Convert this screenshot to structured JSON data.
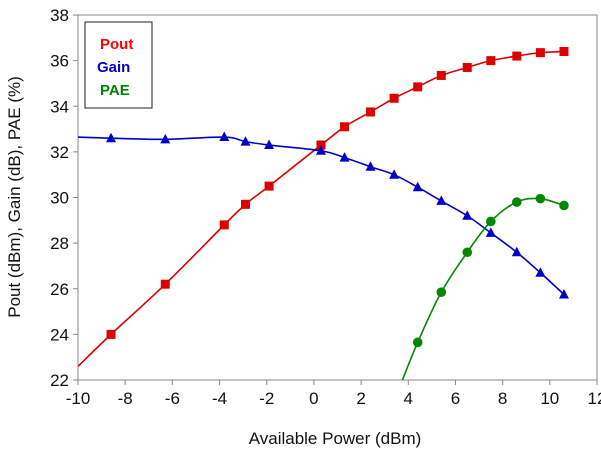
{
  "chart_data": {
    "type": "line",
    "title": "",
    "xlabel": "Available Power (dBm)",
    "ylabel": "Pout (dBm), Gain (dB),  PAE (%)",
    "xlim": [
      -10,
      12
    ],
    "ylim": [
      22,
      38
    ],
    "xticks": [
      -10,
      -8,
      -6,
      -4,
      -2,
      0,
      2,
      4,
      6,
      8,
      10,
      12
    ],
    "yticks": [
      22,
      24,
      26,
      28,
      30,
      32,
      34,
      36,
      38
    ],
    "grid": false,
    "legend_position": "top-left",
    "legend": [
      {
        "name": "Pout",
        "color": "#ff0000"
      },
      {
        "name": "Gain",
        "color": "#0000ff"
      },
      {
        "name": "PAE",
        "color": "#008000"
      }
    ],
    "series": [
      {
        "name": "Pout",
        "color": "#dd0000",
        "marker": "square",
        "line": [
          [
            -10,
            22.6
          ],
          [
            -8.6,
            24.0
          ]
        ],
        "x": [
          -8.6,
          -6.3,
          -3.8,
          -2.9,
          -1.9,
          0.3,
          1.3,
          2.4,
          3.4,
          4.4,
          5.4,
          6.5,
          7.5,
          8.6,
          9.6,
          10.6
        ],
        "values": [
          24.0,
          26.2,
          28.8,
          29.7,
          30.5,
          32.3,
          33.1,
          33.75,
          34.35,
          34.85,
          35.35,
          35.7,
          36.0,
          36.2,
          36.35,
          36.4
        ]
      },
      {
        "name": "Gain",
        "color": "#0000cc",
        "marker": "triangle",
        "line": [
          [
            -10,
            32.65
          ],
          [
            -8.6,
            32.65
          ]
        ],
        "x": [
          -8.6,
          -6.3,
          -3.8,
          -2.9,
          -1.9,
          0.3,
          1.3,
          2.4,
          3.4,
          4.4,
          5.4,
          6.5,
          7.5,
          8.6,
          9.6,
          10.6
        ],
        "values": [
          32.6,
          32.55,
          32.65,
          32.45,
          32.3,
          32.05,
          31.75,
          31.35,
          31.0,
          30.45,
          29.85,
          29.2,
          28.45,
          27.6,
          26.7,
          25.75
        ]
      },
      {
        "name": "PAE",
        "color": "#008800",
        "marker": "circle",
        "line": [
          [
            3.6,
            21.6
          ],
          [
            4.4,
            23.65
          ]
        ],
        "x": [
          4.4,
          5.4,
          6.5,
          7.5,
          8.6,
          9.6,
          10.6
        ],
        "values": [
          23.65,
          25.85,
          27.6,
          28.95,
          29.8,
          29.95,
          29.65
        ]
      }
    ]
  }
}
